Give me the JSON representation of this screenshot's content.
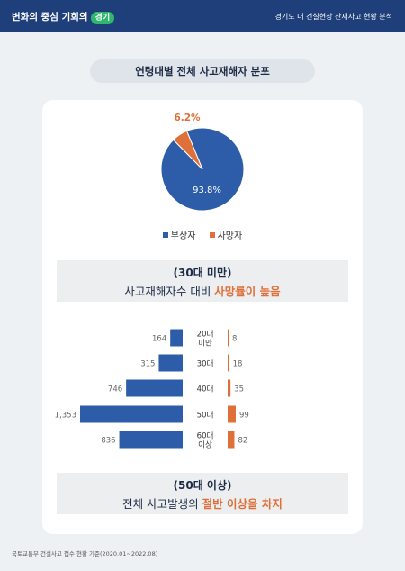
{
  "header": {
    "brand_text": "변화의 중심 기회의",
    "brand_badge": "경기",
    "subtitle": "경기도 내 건설현장 산재사고 현황 분석"
  },
  "title": "연령대별 전체 사고재해자 분포",
  "colors": {
    "blue": "#2d5ca8",
    "orange": "#e0703a",
    "navy": "#1f3f7a"
  },
  "chart_data": [
    {
      "type": "pie",
      "series": [
        {
          "name": "부상자",
          "value": 93.8,
          "label": "93.8%",
          "color": "#2d5ca8"
        },
        {
          "name": "사망자",
          "value": 6.2,
          "label": "6.2%",
          "color": "#e0703a"
        }
      ]
    },
    {
      "type": "bar",
      "orientation": "horizontal-butterfly",
      "categories": [
        "20대\n미만",
        "30대",
        "40대",
        "50대",
        "60대\n이상"
      ],
      "series": [
        {
          "name": "부상자",
          "values": [
            164,
            315,
            746,
            1353,
            836
          ],
          "labels": [
            "164",
            "315",
            "746",
            "1,353",
            "836"
          ],
          "color": "#2d5ca8"
        },
        {
          "name": "사망자",
          "values": [
            8,
            18,
            35,
            99,
            82
          ],
          "labels": [
            "8",
            "18",
            "35",
            "99",
            "82"
          ],
          "color": "#e0703a"
        }
      ]
    }
  ],
  "legend": {
    "injured": "부상자",
    "dead": "사망자"
  },
  "callout1": {
    "line1": "(30대 미만)",
    "line2_prefix": "사고재해자수 대비 ",
    "line2_highlight": "사망률이 높음"
  },
  "callout2": {
    "line1": "(50대 이상)",
    "line2_prefix": "전체 사고발생의 ",
    "line2_highlight": "절반 이상을 차지"
  },
  "footer": "국토교통부 건설사고 접수 현황 기준(2020.01~2022.08)"
}
